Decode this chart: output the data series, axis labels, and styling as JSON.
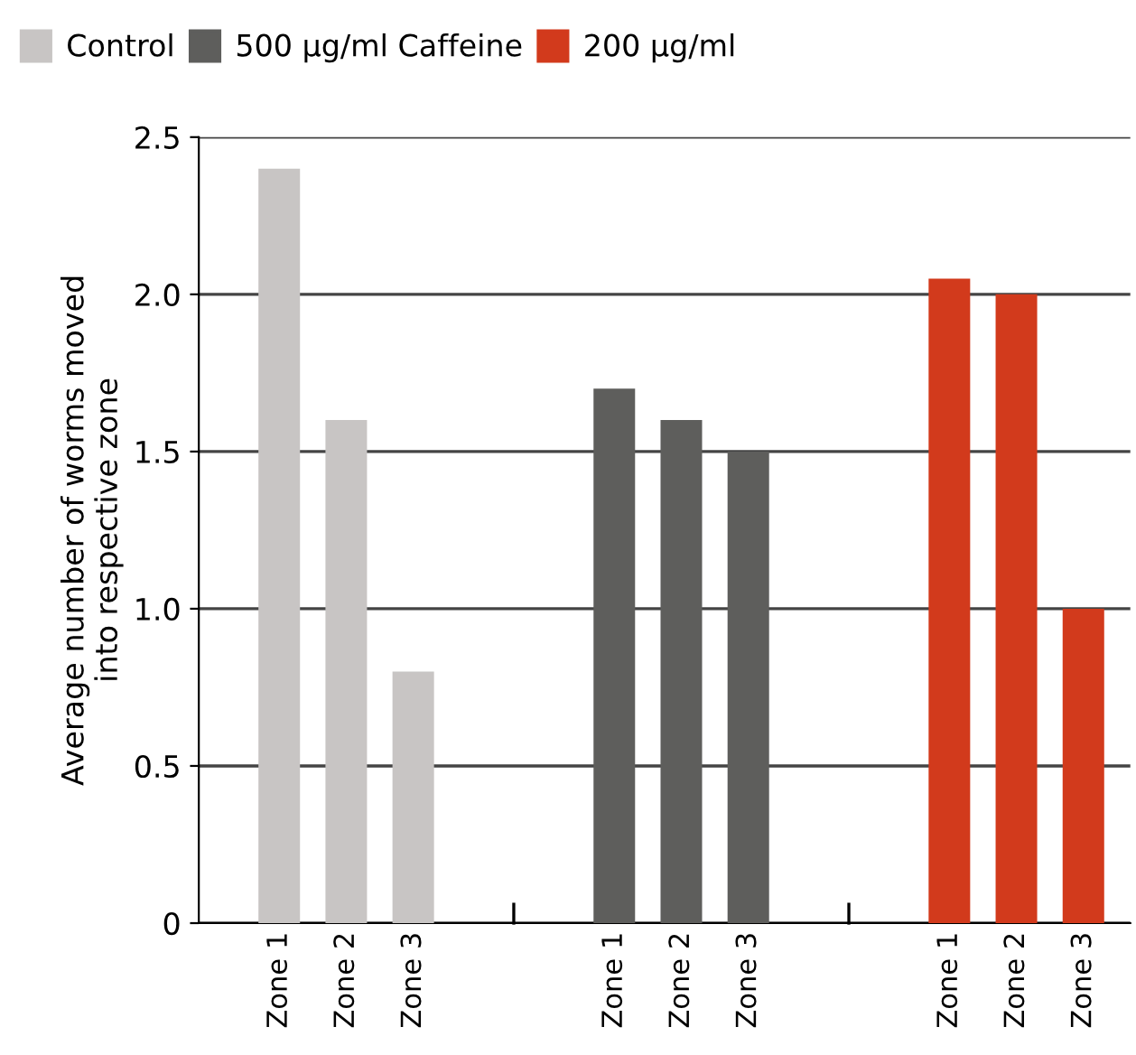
{
  "chart_data": {
    "type": "bar",
    "ylabel": "Average number of worms moved\ninto respective zone",
    "categories": [
      "Zone 1",
      "Zone 2",
      "Zone 3",
      null,
      null,
      "Zone 1",
      "Zone 2",
      "Zone 3",
      null,
      null,
      "Zone 1",
      "Zone 2",
      "Zone 3"
    ],
    "series": [
      {
        "name": "Control",
        "color": "#c8c5c4",
        "values": [
          2.4,
          1.6,
          0.8,
          null,
          null,
          null,
          null,
          null,
          null,
          null,
          null,
          null,
          null
        ]
      },
      {
        "name": "500 µg/ml Caffeine",
        "color": "#5e5e5c",
        "values": [
          null,
          null,
          null,
          null,
          null,
          1.7,
          1.6,
          1.5,
          null,
          null,
          null,
          null,
          null
        ]
      },
      {
        "name": "200 µg/ml",
        "color": "#d23a1c",
        "values": [
          null,
          null,
          null,
          null,
          null,
          null,
          null,
          null,
          null,
          null,
          2.05,
          2.0,
          1.0
        ]
      }
    ],
    "ylim": [
      0,
      2.5
    ],
    "yticks": [
      0,
      {
        "value": 0.5,
        "label": "0.5"
      },
      {
        "value": 1.0,
        "label": "1.0"
      },
      {
        "value": 1.5,
        "label": "1.5"
      },
      {
        "value": 2.0,
        "label": "2.0"
      },
      {
        "value": 2.5,
        "label": "2.5"
      }
    ],
    "grid": "y",
    "legend": "top"
  }
}
